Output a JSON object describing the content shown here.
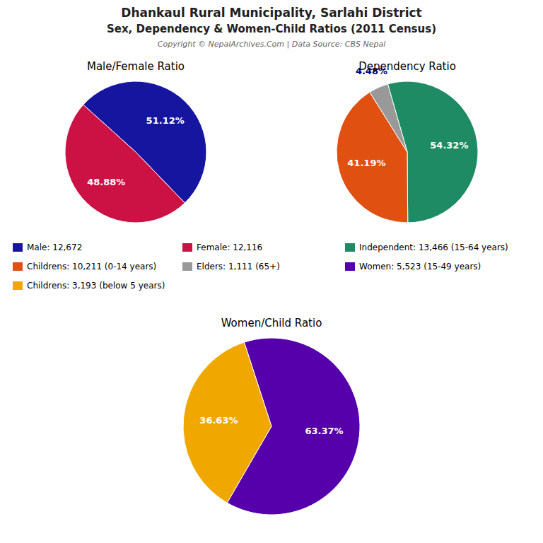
{
  "title": "Dhankaul Rural Municipality, Sarlahi District",
  "subtitle": "Sex, Dependency & Women-Child Ratios (2011 Census)",
  "annotations": [
    "Copyright © NepalArchives.Com | Data Source: CBS Nepal"
  ],
  "chart_data": [
    {
      "type": "pie",
      "title": "Male/Female Ratio",
      "categories": [
        "Male: 12,672",
        "Female: 12,116"
      ],
      "values": [
        51.12,
        48.88
      ],
      "value_labels": [
        "51.12%",
        "48.88%"
      ],
      "colors": [
        "#1515a0",
        "#cc1144"
      ],
      "data_labels": true,
      "legend": "bottom"
    },
    {
      "type": "pie",
      "title": "Dependency Ratio",
      "categories": [
        "Independent: 13,466 (15-64 years)",
        "Childrens: 10,211 (0-14 years)",
        "Elders: 1,111 (65+)"
      ],
      "values": [
        54.32,
        41.19,
        4.48
      ],
      "value_labels": [
        "54.32%",
        "41.19%",
        "4.48%"
      ],
      "colors": [
        "#1e8b65",
        "#e05010",
        "#999999"
      ],
      "data_labels": true,
      "legend": "bottom"
    },
    {
      "type": "pie",
      "title": "Women/Child Ratio",
      "categories": [
        "Women: 5,523 (15-49 years)",
        "Childrens: 3,193 (below 5 years)"
      ],
      "values": [
        63.37,
        36.63
      ],
      "value_labels": [
        "63.37%",
        "36.63%"
      ],
      "colors": [
        "#5500aa",
        "#f0a800"
      ],
      "data_labels": true,
      "legend": "bottom"
    }
  ]
}
